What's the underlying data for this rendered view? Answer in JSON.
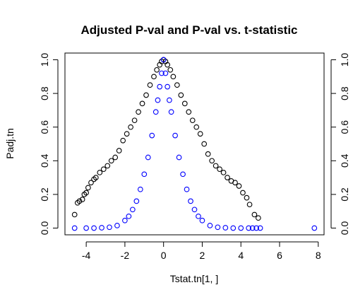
{
  "chart_data": {
    "type": "scatter",
    "title": "Adjusted P-val and P-val vs. t-statistic",
    "xlabel": "Tstat.tn[1, ]",
    "ylabel": "Padj.tn",
    "xlim": [
      -5.1,
      8.3
    ],
    "ylim": [
      -0.04,
      1.04
    ],
    "x_ticks": [
      -4,
      -2,
      0,
      2,
      4,
      6,
      8
    ],
    "y_ticks": [
      0.0,
      0.2,
      0.4,
      0.6,
      0.8,
      1.0
    ],
    "x_tick_labels": [
      "-4",
      "-2",
      "0",
      "2",
      "4",
      "6",
      "8"
    ],
    "y_tick_labels": [
      "0.0",
      "0.2",
      "0.4",
      "0.6",
      "0.8",
      "1.0"
    ],
    "right_y_tick_labels": [
      "0.0",
      "0.2",
      "0.4",
      "0.6",
      "0.8",
      "1.0"
    ],
    "marker": "open-circle",
    "series": [
      {
        "name": "Adjusted P-val",
        "color": "#000000",
        "x": [
          -4.6,
          -4.45,
          -4.35,
          -4.2,
          -4.1,
          -4.0,
          -3.9,
          -3.75,
          -3.6,
          -3.5,
          -3.3,
          -3.1,
          -2.9,
          -2.7,
          -2.5,
          -2.3,
          -2.1,
          -1.9,
          -1.7,
          -1.5,
          -1.3,
          -1.1,
          -0.9,
          -0.7,
          -0.5,
          -0.35,
          -0.2,
          -0.1,
          0.0,
          0.1,
          0.2,
          0.35,
          0.5,
          0.7,
          0.9,
          1.1,
          1.3,
          1.5,
          1.7,
          1.9,
          2.1,
          2.3,
          2.5,
          2.7,
          2.9,
          3.1,
          3.3,
          3.5,
          3.7,
          3.9,
          4.1,
          4.3,
          4.45,
          4.7,
          4.9
        ],
        "y": [
          0.08,
          0.15,
          0.16,
          0.17,
          0.2,
          0.21,
          0.24,
          0.27,
          0.29,
          0.3,
          0.33,
          0.35,
          0.37,
          0.4,
          0.42,
          0.46,
          0.52,
          0.56,
          0.6,
          0.64,
          0.69,
          0.74,
          0.79,
          0.85,
          0.9,
          0.94,
          0.97,
          0.99,
          1.0,
          0.99,
          0.97,
          0.94,
          0.9,
          0.85,
          0.79,
          0.74,
          0.69,
          0.64,
          0.6,
          0.56,
          0.5,
          0.44,
          0.4,
          0.37,
          0.35,
          0.33,
          0.3,
          0.28,
          0.27,
          0.25,
          0.21,
          0.18,
          0.14,
          0.08,
          0.06
        ]
      },
      {
        "name": "P-val",
        "color": "#0000ff",
        "x": [
          -4.6,
          -4.0,
          -3.6,
          -3.2,
          -2.8,
          -2.4,
          -2.0,
          -1.8,
          -1.6,
          -1.4,
          -1.2,
          -1.0,
          -0.8,
          -0.6,
          -0.4,
          -0.3,
          -0.2,
          -0.1,
          0.0,
          0.1,
          0.2,
          0.3,
          0.4,
          0.6,
          0.8,
          1.0,
          1.2,
          1.4,
          1.6,
          1.8,
          2.0,
          2.4,
          2.8,
          3.2,
          3.6,
          4.0,
          4.4,
          4.6,
          4.8,
          5.0,
          7.8
        ],
        "y": [
          0.0,
          0.0,
          0.0,
          0.002,
          0.005,
          0.015,
          0.045,
          0.07,
          0.11,
          0.16,
          0.23,
          0.32,
          0.42,
          0.55,
          0.69,
          0.76,
          0.84,
          0.92,
          1.0,
          0.92,
          0.84,
          0.76,
          0.69,
          0.55,
          0.42,
          0.32,
          0.23,
          0.16,
          0.11,
          0.07,
          0.045,
          0.015,
          0.005,
          0.002,
          0.0,
          0.0,
          0.0,
          0.0,
          0.0,
          0.0,
          0.0
        ]
      }
    ]
  }
}
